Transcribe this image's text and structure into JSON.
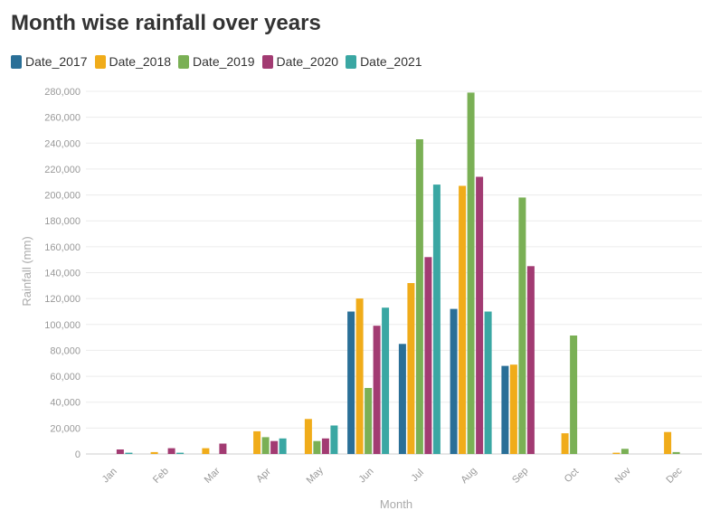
{
  "chart_data": {
    "type": "bar",
    "title": "Month wise rainfall over years",
    "xlabel": "Month",
    "ylabel": "Rainfall (mm)",
    "ylim": [
      0,
      280000
    ],
    "yticks": [
      0,
      20000,
      40000,
      60000,
      80000,
      100000,
      120000,
      140000,
      160000,
      180000,
      200000,
      220000,
      240000,
      260000,
      280000
    ],
    "ytick_labels": [
      "0",
      "20,000",
      "40,000",
      "60,000",
      "80,000",
      "100,000",
      "120,000",
      "140,000",
      "160,000",
      "180,000",
      "200,000",
      "220,000",
      "240,000",
      "260,000",
      "280,000"
    ],
    "categories": [
      "Jan",
      "Feb",
      "Mar",
      "Apr",
      "May",
      "Jun",
      "Jul",
      "Aug",
      "Sep",
      "Oct",
      "Nov",
      "Dec"
    ],
    "grid": true,
    "legend_position": "top-left",
    "series": [
      {
        "name": "Date_2017",
        "color": "#2a6f97",
        "values": [
          0,
          0,
          0,
          0,
          0,
          110000,
          85000,
          112000,
          68000,
          0,
          0,
          0
        ]
      },
      {
        "name": "Date_2018",
        "color": "#f0ac1a",
        "values": [
          0,
          1500,
          4500,
          17500,
          27000,
          120000,
          132000,
          207000,
          69000,
          16000,
          1000,
          17000
        ]
      },
      {
        "name": "Date_2019",
        "color": "#7ab055",
        "values": [
          0,
          0,
          0,
          13000,
          10000,
          51000,
          243000,
          279000,
          198000,
          91500,
          4000,
          1500
        ]
      },
      {
        "name": "Date_2020",
        "color": "#a23b72",
        "values": [
          3500,
          4500,
          8000,
          10000,
          12000,
          99000,
          152000,
          214000,
          145000,
          0,
          0,
          0
        ]
      },
      {
        "name": "Date_2021",
        "color": "#3aa7a3",
        "values": [
          1000,
          1000,
          0,
          12000,
          22000,
          113000,
          208000,
          110000,
          0,
          0,
          0,
          0
        ]
      }
    ]
  }
}
